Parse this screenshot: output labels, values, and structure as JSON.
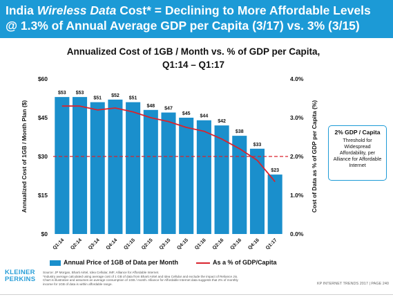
{
  "header": {
    "title_line1_a": "India ",
    "title_line1_b": "Wireless Data",
    "title_line1_c": " Cost* = Declining to More Affordable Levels",
    "title_line2": "@ 1.3% of Annual Average GDP per Capita (3/17) vs. 3% (3/15)",
    "background_color": "#1c9ad6"
  },
  "callout": {
    "title": "2% GDP / Capita",
    "body": "Threshold for Widespread Affordability, per Alliance for Affordable Internet"
  },
  "legend": {
    "bar_label": "Annual Price of 1GB of Data per Month",
    "line_label": "As a % of GDP/Capita"
  },
  "logo": {
    "line1": "KLEINER",
    "line2": "PERKINS"
  },
  "source": {
    "line1": "Source: JP Morgan, Bharti Airtel, Idea Cellular, IMF, Alliance for Affordable Internet.",
    "line2": "*Industry average calculated using average cost of 1 GB of data from Bharti Airtel and Idea Cellular and exclude the impact of Reliance Jio.",
    "line3": "Chart is illustrative and assumes an average consumption of 1GB / month. Alliance for Affordable Internet data suggests that 2% of monthly",
    "line4": "income for 1GB of data is within affordable range."
  },
  "footer": {
    "text": "KP INTERNET TRENDS 2017  |  PAGE 240"
  },
  "chart_data": {
    "type": "bar",
    "title": "Annualized Cost of 1GB / Month vs. % of GDP per Capita,",
    "subtitle": "Q1:14 – Q1:17",
    "categories": [
      "Q1:14",
      "Q2:14",
      "Q3:14",
      "Q4:14",
      "Q1:15",
      "Q2:15",
      "Q3:15",
      "Q4:15",
      "Q1:16",
      "Q2:16",
      "Q3:16",
      "Q4:16",
      "Q1:17"
    ],
    "series": [
      {
        "name": "Annual Price of 1GB of Data per Month",
        "type": "bar",
        "axis": "left",
        "color": "#1a8fcc",
        "values": [
          53,
          53,
          51,
          52,
          51,
          48,
          47,
          45,
          44,
          42,
          38,
          33,
          23
        ],
        "data_labels": [
          "$53",
          "$53",
          "$51",
          "$52",
          "$51",
          "$48",
          "$47",
          "$45",
          "$44",
          "$42",
          "$38",
          "$33",
          "$23"
        ]
      },
      {
        "name": "As a % of GDP/Capita",
        "type": "line",
        "axis": "right",
        "color": "#d9232d",
        "values": [
          3.3,
          3.3,
          3.2,
          3.25,
          3.15,
          3.0,
          2.9,
          2.75,
          2.65,
          2.45,
          2.2,
          1.9,
          1.35
        ]
      }
    ],
    "ylabel": "Annualized Cost of 1GB / Month Plan ($)",
    "ylim": [
      0,
      60
    ],
    "yticks": [
      "$0",
      "$15",
      "$30",
      "$45",
      "$60"
    ],
    "y2label": "Cost of Data as % of GDP per Capita (%)",
    "y2lim": [
      0,
      4
    ],
    "y2ticks": [
      "0.0%",
      "1.0%",
      "2.0%",
      "3.0%",
      "4.0%"
    ],
    "reference_line": {
      "axis": "right",
      "value": 2.0,
      "color": "#d9232d",
      "style": "dashed"
    },
    "grid": false,
    "legend_position": "bottom"
  }
}
